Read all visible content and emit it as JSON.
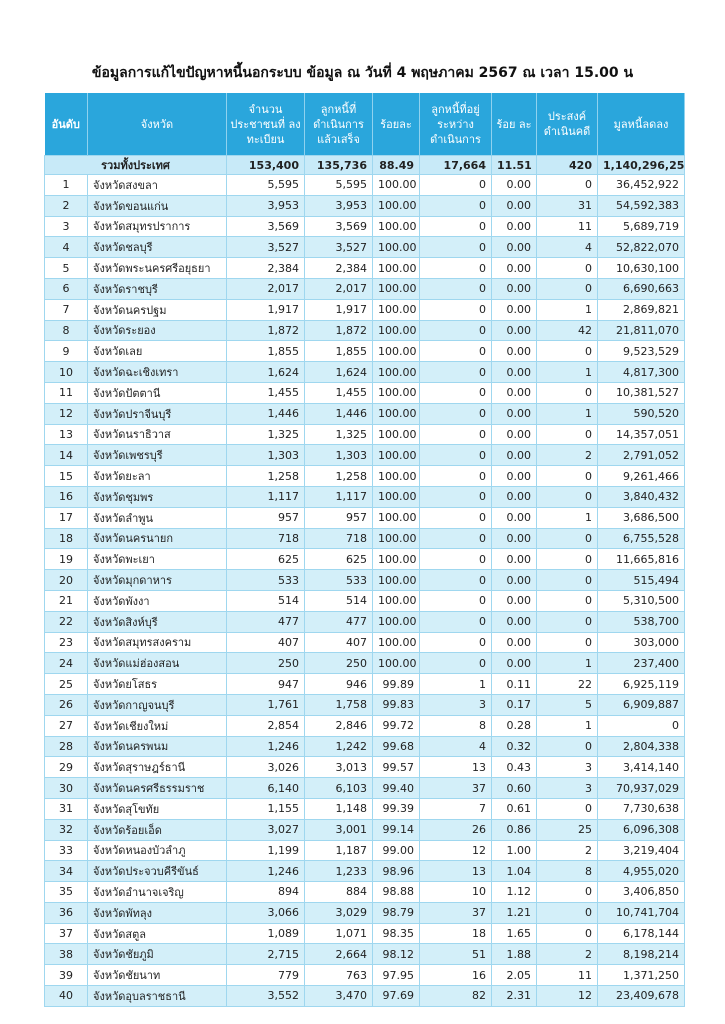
{
  "title": "ข้อมูลการแก้ไขปัญหาหนี้นอกระบบ ข้อมูล ณ วันที่ 4 พฤษภาคม 2567 ณ เวลา 15.00 น",
  "colors": {
    "header": "#2aa6dc",
    "row_alt": "#d3eff9",
    "total_row": "#c8eaf8"
  },
  "headers": [
    "อันดับ",
    "จังหวัด",
    "จำนวน ประชาชนที่ ลงทะเบียน",
    "ลูกหนี้ที่ ดำเนินการ แล้วเสร็จ",
    "ร้อยละ",
    "ลูกหนี้ที่อยู่ ระหว่าง ดำเนินการ",
    "ร้อย ละ",
    "ประสงค์ ดำเนินคดี",
    "มูลหนี้ลดลง"
  ],
  "total": {
    "label": "รวมทั้งประเทศ",
    "values": [
      "153,400",
      "135,736",
      "88.49",
      "17,664",
      "11.51",
      "420",
      "1,140,296,253"
    ]
  },
  "rows": [
    [
      "1",
      "จังหวัดสงขลา",
      "5,595",
      "5,595",
      "100.00",
      "0",
      "0.00",
      "0",
      "36,452,922"
    ],
    [
      "2",
      "จังหวัดขอนแก่น",
      "3,953",
      "3,953",
      "100.00",
      "0",
      "0.00",
      "31",
      "54,592,383"
    ],
    [
      "3",
      "จังหวัดสมุทรปราการ",
      "3,569",
      "3,569",
      "100.00",
      "0",
      "0.00",
      "11",
      "5,689,719"
    ],
    [
      "4",
      "จังหวัดชลบุรี",
      "3,527",
      "3,527",
      "100.00",
      "0",
      "0.00",
      "4",
      "52,822,070"
    ],
    [
      "5",
      "จังหวัดพระนครศรีอยุธยา",
      "2,384",
      "2,384",
      "100.00",
      "0",
      "0.00",
      "0",
      "10,630,100"
    ],
    [
      "6",
      "จังหวัดราชบุรี",
      "2,017",
      "2,017",
      "100.00",
      "0",
      "0.00",
      "0",
      "6,690,663"
    ],
    [
      "7",
      "จังหวัดนครปฐม",
      "1,917",
      "1,917",
      "100.00",
      "0",
      "0.00",
      "1",
      "2,869,821"
    ],
    [
      "8",
      "จังหวัดระยอง",
      "1,872",
      "1,872",
      "100.00",
      "0",
      "0.00",
      "42",
      "21,811,070"
    ],
    [
      "9",
      "จังหวัดเลย",
      "1,855",
      "1,855",
      "100.00",
      "0",
      "0.00",
      "0",
      "9,523,529"
    ],
    [
      "10",
      "จังหวัดฉะเชิงเทรา",
      "1,624",
      "1,624",
      "100.00",
      "0",
      "0.00",
      "1",
      "4,817,300"
    ],
    [
      "11",
      "จังหวัดปัตตานี",
      "1,455",
      "1,455",
      "100.00",
      "0",
      "0.00",
      "0",
      "10,381,527"
    ],
    [
      "12",
      "จังหวัดปราจีนบุรี",
      "1,446",
      "1,446",
      "100.00",
      "0",
      "0.00",
      "1",
      "590,520"
    ],
    [
      "13",
      "จังหวัดนราธิวาส",
      "1,325",
      "1,325",
      "100.00",
      "0",
      "0.00",
      "0",
      "14,357,051"
    ],
    [
      "14",
      "จังหวัดเพชรบุรี",
      "1,303",
      "1,303",
      "100.00",
      "0",
      "0.00",
      "2",
      "2,791,052"
    ],
    [
      "15",
      "จังหวัดยะลา",
      "1,258",
      "1,258",
      "100.00",
      "0",
      "0.00",
      "0",
      "9,261,466"
    ],
    [
      "16",
      "จังหวัดชุมพร",
      "1,117",
      "1,117",
      "100.00",
      "0",
      "0.00",
      "0",
      "3,840,432"
    ],
    [
      "17",
      "จังหวัดลำพูน",
      "957",
      "957",
      "100.00",
      "0",
      "0.00",
      "1",
      "3,686,500"
    ],
    [
      "18",
      "จังหวัดนครนายก",
      "718",
      "718",
      "100.00",
      "0",
      "0.00",
      "0",
      "6,755,528"
    ],
    [
      "19",
      "จังหวัดพะเยา",
      "625",
      "625",
      "100.00",
      "0",
      "0.00",
      "0",
      "11,665,816"
    ],
    [
      "20",
      "จังหวัดมุกดาหาร",
      "533",
      "533",
      "100.00",
      "0",
      "0.00",
      "0",
      "515,494"
    ],
    [
      "21",
      "จังหวัดพังงา",
      "514",
      "514",
      "100.00",
      "0",
      "0.00",
      "0",
      "5,310,500"
    ],
    [
      "22",
      "จังหวัดสิงห์บุรี",
      "477",
      "477",
      "100.00",
      "0",
      "0.00",
      "0",
      "538,700"
    ],
    [
      "23",
      "จังหวัดสมุทรสงคราม",
      "407",
      "407",
      "100.00",
      "0",
      "0.00",
      "0",
      "303,000"
    ],
    [
      "24",
      "จังหวัดแม่ฮ่องสอน",
      "250",
      "250",
      "100.00",
      "0",
      "0.00",
      "1",
      "237,400"
    ],
    [
      "25",
      "จังหวัดยโสธร",
      "947",
      "946",
      "99.89",
      "1",
      "0.11",
      "22",
      "6,925,119"
    ],
    [
      "26",
      "จังหวัดกาญจนบุรี",
      "1,761",
      "1,758",
      "99.83",
      "3",
      "0.17",
      "5",
      "6,909,887"
    ],
    [
      "27",
      "จังหวัดเชียงใหม่",
      "2,854",
      "2,846",
      "99.72",
      "8",
      "0.28",
      "1",
      "0"
    ],
    [
      "28",
      "จังหวัดนครพนม",
      "1,246",
      "1,242",
      "99.68",
      "4",
      "0.32",
      "0",
      "2,804,338"
    ],
    [
      "29",
      "จังหวัดสุราษฎร์ธานี",
      "3,026",
      "3,013",
      "99.57",
      "13",
      "0.43",
      "3",
      "3,414,140"
    ],
    [
      "30",
      "จังหวัดนครศรีธรรมราช",
      "6,140",
      "6,103",
      "99.40",
      "37",
      "0.60",
      "3",
      "70,937,029"
    ],
    [
      "31",
      "จังหวัดสุโขทัย",
      "1,155",
      "1,148",
      "99.39",
      "7",
      "0.61",
      "0",
      "7,730,638"
    ],
    [
      "32",
      "จังหวัดร้อยเอ็ด",
      "3,027",
      "3,001",
      "99.14",
      "26",
      "0.86",
      "25",
      "6,096,308"
    ],
    [
      "33",
      "จังหวัดหนองบัวลำภู",
      "1,199",
      "1,187",
      "99.00",
      "12",
      "1.00",
      "2",
      "3,219,404"
    ],
    [
      "34",
      "จังหวัดประจวบคีรีขันธ์",
      "1,246",
      "1,233",
      "98.96",
      "13",
      "1.04",
      "8",
      "4,955,020"
    ],
    [
      "35",
      "จังหวัดอำนาจเจริญ",
      "894",
      "884",
      "98.88",
      "10",
      "1.12",
      "0",
      "3,406,850"
    ],
    [
      "36",
      "จังหวัดพัทลุง",
      "3,066",
      "3,029",
      "98.79",
      "37",
      "1.21",
      "0",
      "10,741,704"
    ],
    [
      "37",
      "จังหวัดสตูล",
      "1,089",
      "1,071",
      "98.35",
      "18",
      "1.65",
      "0",
      "6,178,144"
    ],
    [
      "38",
      "จังหวัดชัยภูมิ",
      "2,715",
      "2,664",
      "98.12",
      "51",
      "1.88",
      "2",
      "8,198,214"
    ],
    [
      "39",
      "จังหวัดชัยนาท",
      "779",
      "763",
      "97.95",
      "16",
      "2.05",
      "11",
      "1,371,250"
    ],
    [
      "40",
      "จังหวัดอุบลราชธานี",
      "3,552",
      "3,470",
      "97.69",
      "82",
      "2.31",
      "12",
      "23,409,678"
    ]
  ]
}
